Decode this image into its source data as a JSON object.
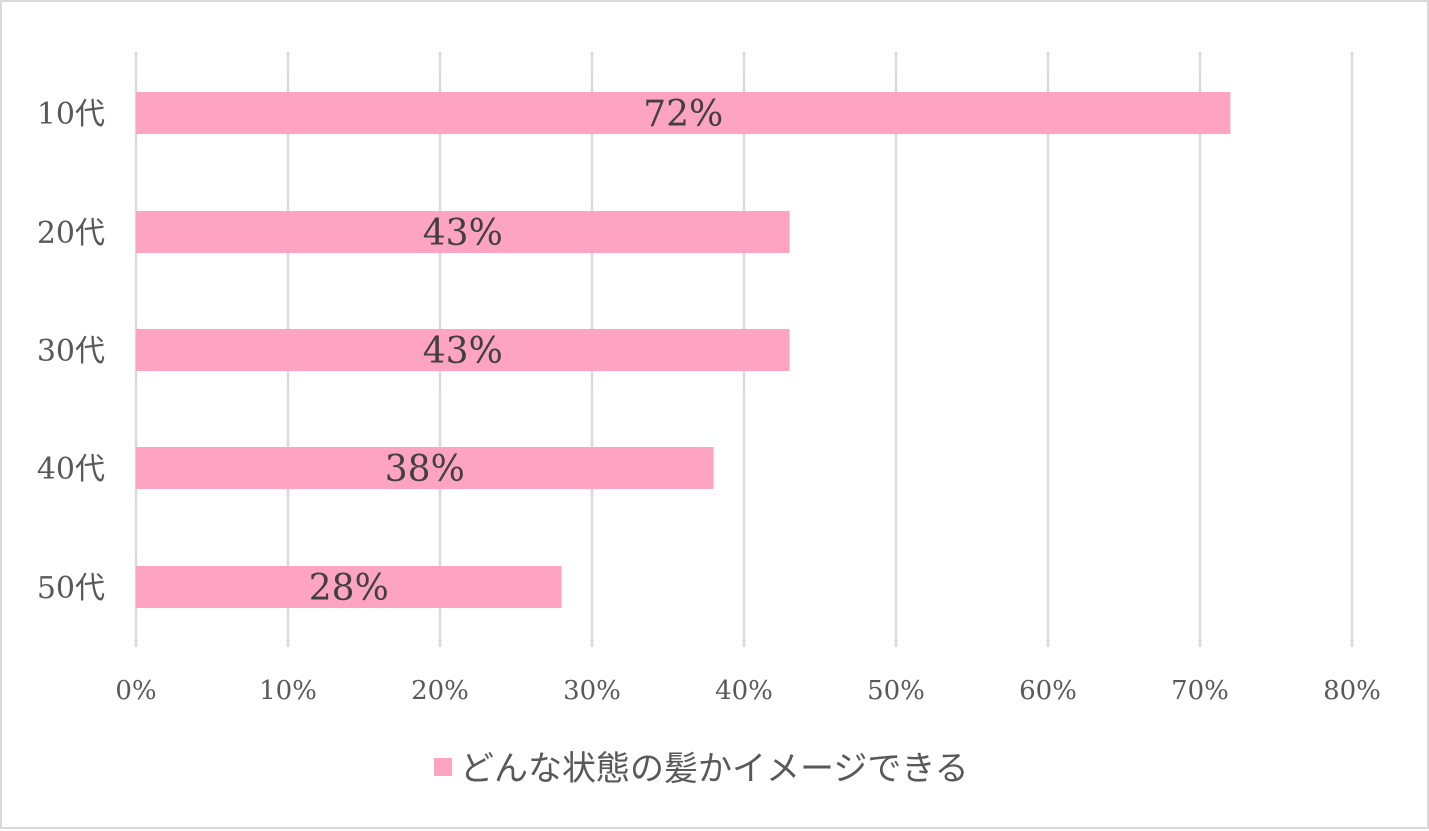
{
  "chart_data": {
    "type": "bar",
    "orientation": "horizontal",
    "categories": [
      "10代",
      "20代",
      "30代",
      "40代",
      "50代"
    ],
    "series": [
      {
        "name": "どんな状態の髪かイメージできる",
        "values": [
          72,
          43,
          43,
          38,
          28
        ],
        "data_labels": [
          "72%",
          "43%",
          "43%",
          "38%",
          "28%"
        ],
        "color": "#ffa3c2"
      }
    ],
    "xlim": [
      0,
      80
    ],
    "x_ticks": [
      0,
      10,
      20,
      30,
      40,
      50,
      60,
      70,
      80
    ],
    "x_tick_labels": [
      "0%",
      "10%",
      "20%",
      "30%",
      "40%",
      "50%",
      "60%",
      "70%",
      "80%"
    ],
    "grid": true,
    "grid_color": "#d9d9d9",
    "legend_position": "bottom",
    "title": "",
    "xlabel": "",
    "ylabel": ""
  }
}
